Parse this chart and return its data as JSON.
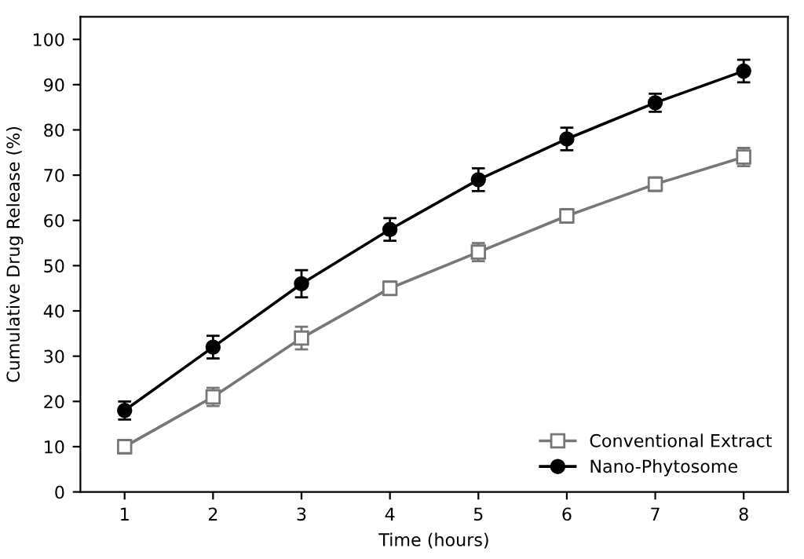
{
  "chart_data": {
    "type": "line",
    "xlabel": "Time (hours)",
    "ylabel": "Cumulative Drug Release (%)",
    "x": [
      1,
      2,
      3,
      4,
      5,
      6,
      7,
      8
    ],
    "series": [
      {
        "name": "Conventional Extract",
        "color": "#777777",
        "marker": "square",
        "values": [
          10,
          21,
          34,
          45,
          53,
          61,
          68,
          74
        ],
        "errors": [
          1.5,
          2,
          2.5,
          1.5,
          2,
          1.5,
          1.5,
          2
        ]
      },
      {
        "name": "Nano-Phytosome",
        "color": "#000000",
        "marker": "circle",
        "values": [
          18,
          32,
          46,
          58,
          69,
          78,
          86,
          93
        ],
        "errors": [
          2,
          2.5,
          3,
          2.5,
          2.5,
          2.5,
          2,
          2.5
        ]
      }
    ],
    "xlim": [
      0.5,
      8.5
    ],
    "xticks": [
      1,
      2,
      3,
      4,
      5,
      6,
      7,
      8
    ],
    "ylim": [
      0,
      105
    ],
    "yticks": [
      0,
      10,
      20,
      30,
      40,
      50,
      60,
      70,
      80,
      90,
      100
    ],
    "grid": false,
    "legend": "bottom right",
    "line_style": "solid"
  }
}
